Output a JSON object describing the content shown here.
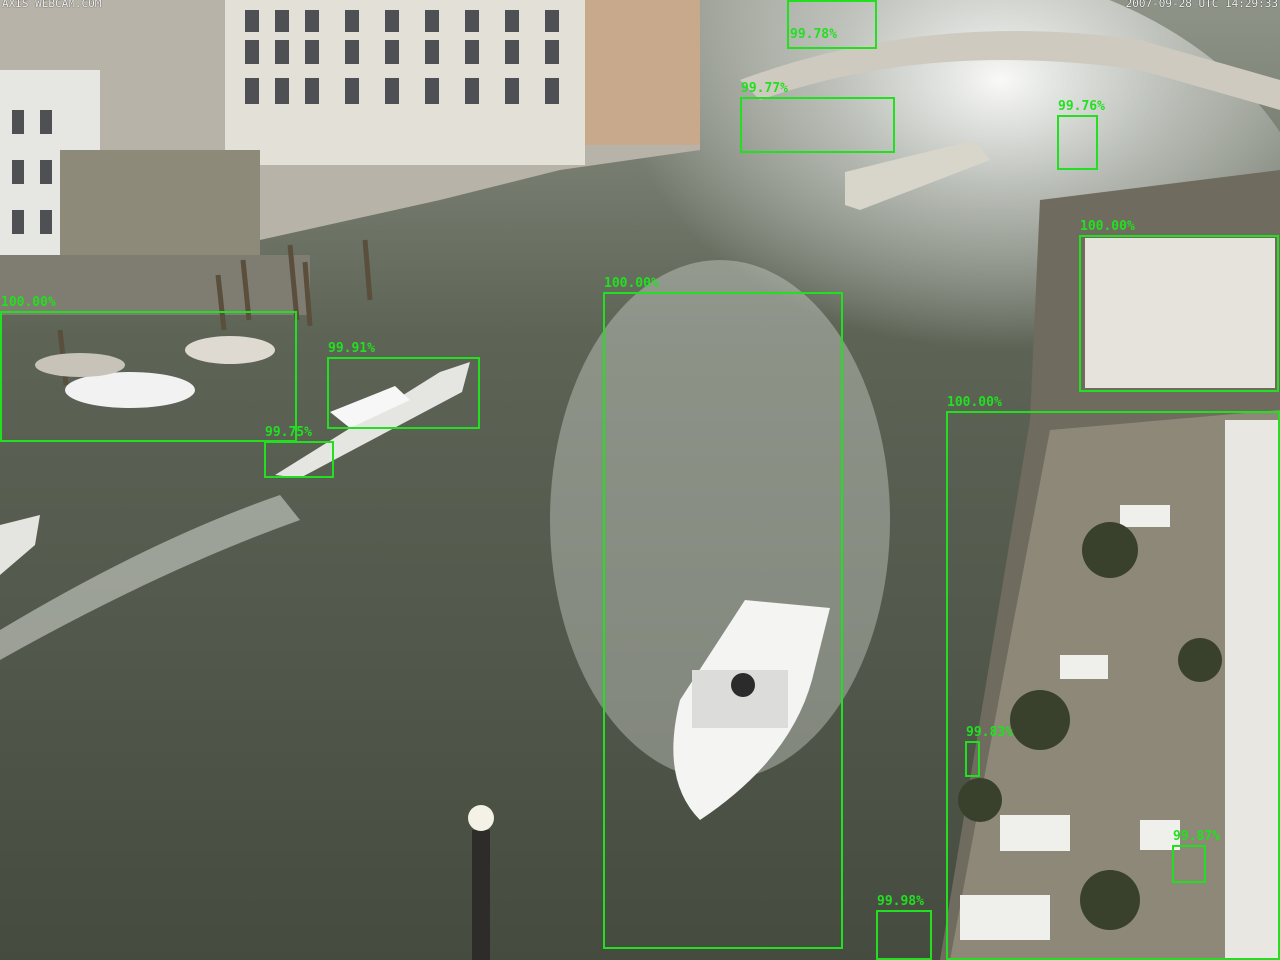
{
  "camera": {
    "source_text": "AXIS WEBCAM.COM",
    "timestamp_text": "2007-09-28 UTC 14:29:33"
  },
  "detections": [
    {
      "id": "boat-top-bridge",
      "label": "99.78%",
      "confidence": 99.78
    },
    {
      "id": "boat-upper-mid",
      "label": "99.77%",
      "confidence": 99.77
    },
    {
      "id": "boat-upper-right",
      "label": "99.76%",
      "confidence": 99.76
    },
    {
      "id": "pier-right-top",
      "label": "100.00%",
      "confidence": 100.0
    },
    {
      "id": "boats-left-moored",
      "label": "100.00%",
      "confidence": 100.0
    },
    {
      "id": "water-taxi-left",
      "label": "99.91%",
      "confidence": 99.91
    },
    {
      "id": "boat-small-left",
      "label": "99.75%",
      "confidence": 99.75
    },
    {
      "id": "speedboat-center",
      "label": "100.00%",
      "confidence": 100.0
    },
    {
      "id": "terrace-right",
      "label": "100.00%",
      "confidence": 100.0
    },
    {
      "id": "person-right-small",
      "label": "99.83%",
      "confidence": 99.83
    },
    {
      "id": "object-right-bottom",
      "label": "99.87%",
      "confidence": 99.87
    },
    {
      "id": "object-bottom-mid",
      "label": "99.98%",
      "confidence": 99.98
    }
  ],
  "colors": {
    "box": "#22e01f",
    "water": "#4f5648",
    "building": "#d9d6cf"
  }
}
